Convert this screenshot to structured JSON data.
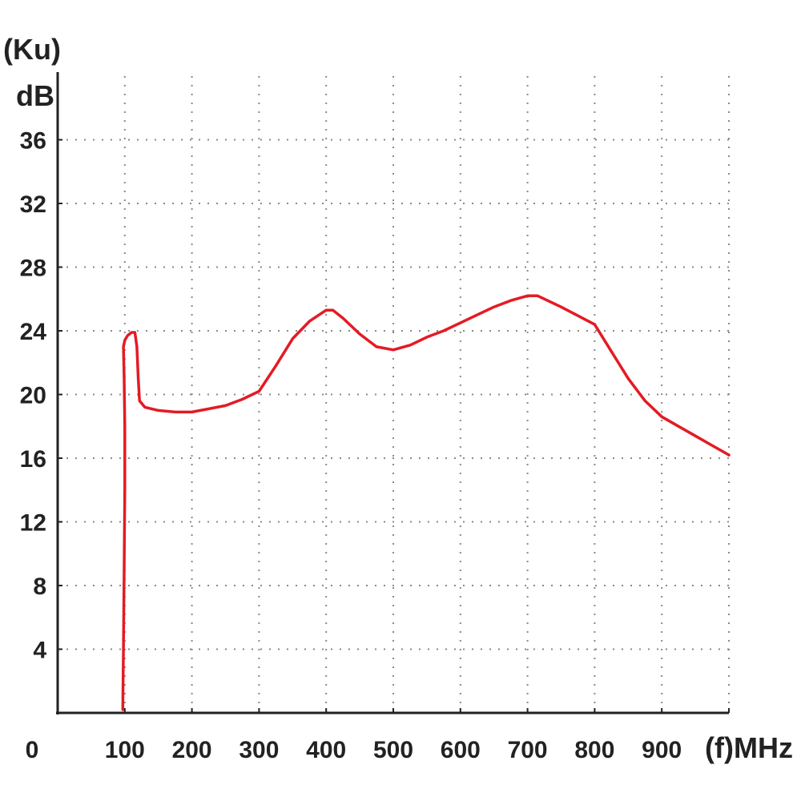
{
  "chart_data": {
    "type": "line",
    "ylabel_line1": "(Ku)",
    "ylabel_line2": "dB",
    "xlabel": "(f)MHz",
    "origin_label": "0",
    "xlim": [
      0,
      1000
    ],
    "ylim": [
      0,
      40
    ],
    "x_ticks": [
      "100",
      "200",
      "300",
      "400",
      "500",
      "600",
      "700",
      "800",
      "900"
    ],
    "y_ticks": [
      "4",
      "8",
      "12",
      "16",
      "20",
      "24",
      "28",
      "32",
      "36"
    ],
    "grid": true,
    "series": [
      {
        "color": "#e31b23",
        "points": [
          [
            97,
            0.2
          ],
          [
            98,
            4
          ],
          [
            99,
            9
          ],
          [
            100,
            14
          ],
          [
            100,
            18
          ],
          [
            99,
            21
          ],
          [
            98,
            23
          ],
          [
            100,
            23.4
          ],
          [
            104,
            23.7
          ],
          [
            110,
            23.9
          ],
          [
            115,
            23.9
          ],
          [
            118,
            23
          ],
          [
            120,
            21
          ],
          [
            122,
            19.6
          ],
          [
            130,
            19.2
          ],
          [
            150,
            19.0
          ],
          [
            175,
            18.9
          ],
          [
            200,
            18.9
          ],
          [
            225,
            19.1
          ],
          [
            250,
            19.3
          ],
          [
            275,
            19.7
          ],
          [
            300,
            20.2
          ],
          [
            325,
            21.8
          ],
          [
            350,
            23.5
          ],
          [
            375,
            24.6
          ],
          [
            400,
            25.3
          ],
          [
            410,
            25.3
          ],
          [
            425,
            24.8
          ],
          [
            450,
            23.8
          ],
          [
            475,
            23.0
          ],
          [
            500,
            22.8
          ],
          [
            525,
            23.1
          ],
          [
            550,
            23.6
          ],
          [
            575,
            24.0
          ],
          [
            600,
            24.5
          ],
          [
            625,
            25.0
          ],
          [
            650,
            25.5
          ],
          [
            675,
            25.9
          ],
          [
            700,
            26.2
          ],
          [
            715,
            26.2
          ],
          [
            750,
            25.5
          ],
          [
            800,
            24.4
          ],
          [
            825,
            22.7
          ],
          [
            850,
            21.0
          ],
          [
            875,
            19.6
          ],
          [
            900,
            18.6
          ],
          [
            925,
            18.0
          ],
          [
            950,
            17.4
          ],
          [
            975,
            16.8
          ],
          [
            1000,
            16.2
          ]
        ]
      }
    ]
  }
}
